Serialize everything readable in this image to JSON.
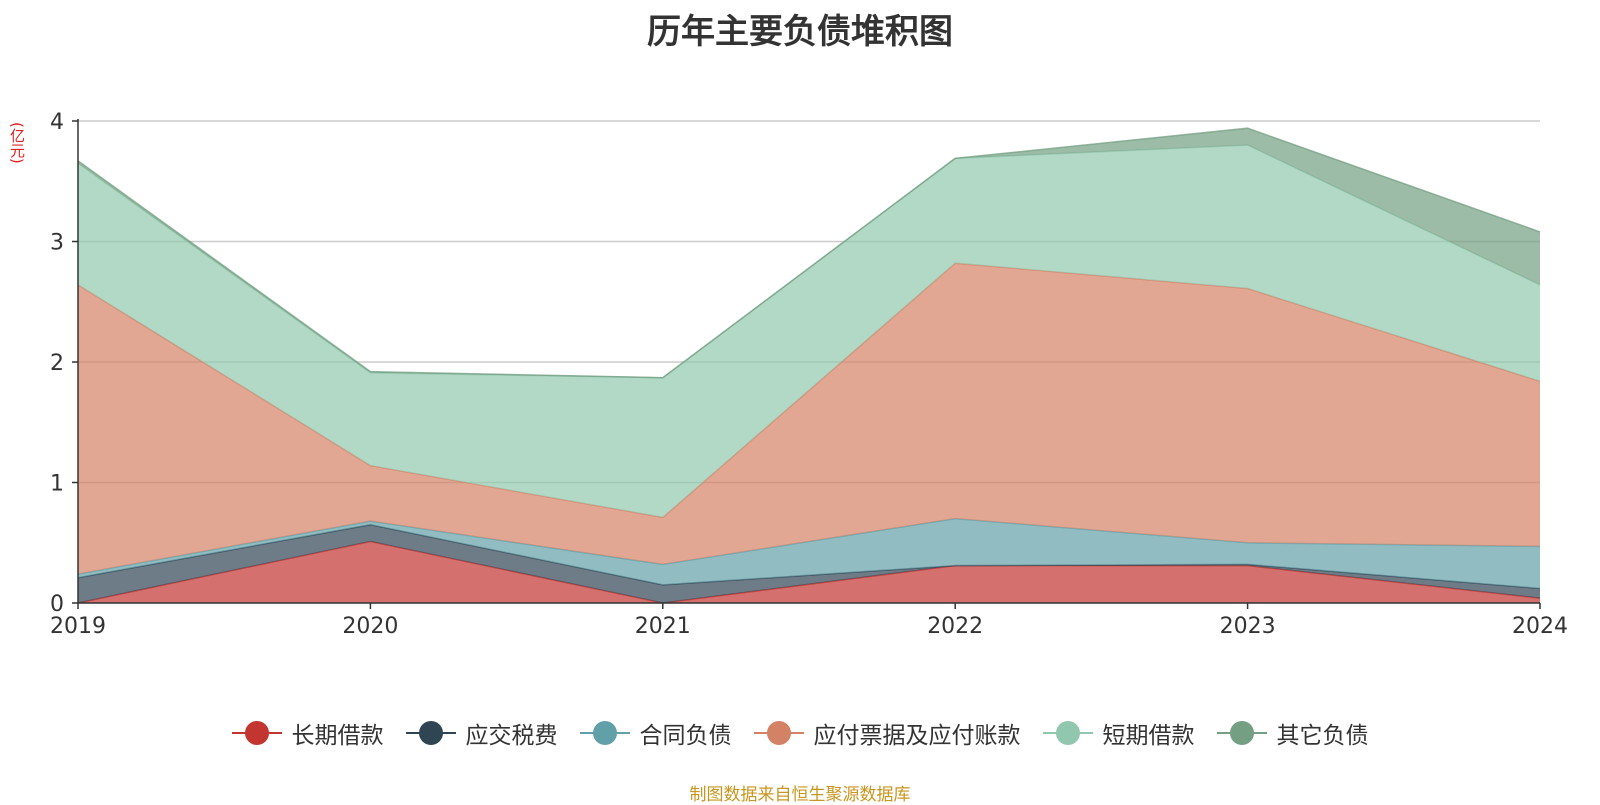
{
  "chart_data": {
    "type": "area",
    "stacked": true,
    "title": "历年主要负债堆积图",
    "unit_label": "(亿元)",
    "source_note": "制图数据来自恒生聚源数据库",
    "x": [
      "2019",
      "2020",
      "2021",
      "2022",
      "2023",
      "2024"
    ],
    "ylim": [
      0,
      4
    ],
    "yticks": [
      "0",
      "1",
      "2",
      "3",
      "4"
    ],
    "grid": true,
    "legend_position": "bottom",
    "series": [
      {
        "name": "长期借款",
        "color": "#c23531",
        "values": [
          0.0,
          0.51,
          0.0,
          0.31,
          0.31,
          0.04
        ]
      },
      {
        "name": "应交税费",
        "color": "#2f4554",
        "values": [
          0.21,
          0.14,
          0.15,
          0.0,
          0.01,
          0.08
        ]
      },
      {
        "name": "合同负债",
        "color": "#61a0a8",
        "values": [
          0.03,
          0.03,
          0.17,
          0.39,
          0.18,
          0.35
        ]
      },
      {
        "name": "应付票据及应付账款",
        "color": "#d48265",
        "values": [
          2.4,
          0.46,
          0.39,
          2.12,
          2.11,
          1.37
        ]
      },
      {
        "name": "短期借款",
        "color": "#91c7ae",
        "values": [
          1.01,
          0.77,
          1.16,
          0.87,
          1.19,
          0.8
        ]
      },
      {
        "name": "其它负债",
        "color": "#749f83",
        "values": [
          0.02,
          0.01,
          0.0,
          0.0,
          0.14,
          0.44
        ]
      }
    ]
  }
}
